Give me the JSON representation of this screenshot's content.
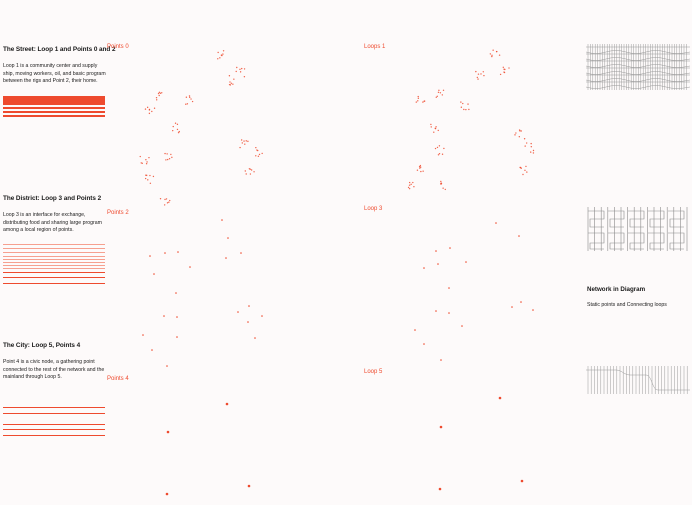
{
  "sections": {
    "street": {
      "title": "The Street: Loop 1 and Points 0 and 2",
      "body": "Loop 1 is a community center and supply ship, moving workers, oil, and basic program between the rigs and Point 2, their home."
    },
    "district": {
      "title": "The District: Loop 3 and Points 2",
      "body": "Loop 3 is an interface for exchange, distributing food and sharing large program among a local region of points."
    },
    "city": {
      "title": "The City: Loop 5, Points 4",
      "body": "Point 4 is a civic node, a gathering point connected to the rest of the network and the mainland through Loop 5."
    }
  },
  "panels": {
    "points0": "Points 0",
    "loops1": "Loops 1",
    "points2": "Points 2",
    "loops3": "Loop 3",
    "points4": "Points 4",
    "loop5": "Loop 5"
  },
  "network": {
    "title": "Network in Diagram",
    "subtitle": "Static points and Connecting loops"
  },
  "colors": {
    "accent": "#ee4a2e",
    "accent_light": "#f6a08f",
    "diagram_gray": "#9a9a9a",
    "background": "#fdfafa"
  }
}
